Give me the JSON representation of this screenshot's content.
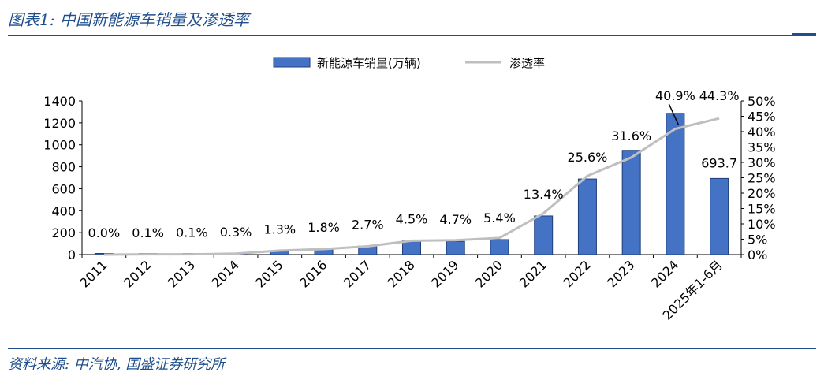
{
  "figure_title": "图表1:  中国新能源车销量及渗透率",
  "source": "资料来源:  中汽协, 国盛证券研究所",
  "colors": {
    "bar": "#4472c4",
    "bar_stroke": "#1f3f7a",
    "line": "#bfbfbf",
    "title": "#1f4e8c"
  },
  "chart_data": {
    "type": "bar",
    "categories": [
      "2011",
      "2012",
      "2013",
      "2014",
      "2015",
      "2016",
      "2017",
      "2018",
      "2019",
      "2020",
      "2021",
      "2022",
      "2023",
      "2024",
      "2025年1-6月"
    ],
    "series": [
      {
        "name": "新能源车销量(万辆)",
        "type": "bar",
        "values": [
          0.8,
          1.3,
          1.8,
          7.5,
          33.1,
          50.7,
          77.7,
          125.6,
          120.6,
          136.7,
          352.1,
          688.7,
          949.5,
          1286.6,
          693.7
        ],
        "data_labels": [
          "",
          "",
          "",
          "",
          "",
          "",
          "",
          "",
          "",
          "",
          "",
          "",
          "",
          "",
          "693.7"
        ]
      },
      {
        "name": "渗透率",
        "type": "line",
        "axis": "right",
        "values": [
          0.0,
          0.1,
          0.1,
          0.3,
          1.3,
          1.8,
          2.7,
          4.5,
          4.7,
          5.4,
          13.4,
          25.6,
          31.6,
          40.9,
          44.3
        ],
        "data_labels": [
          "0.0%",
          "0.1%",
          "0.1%",
          "0.3%",
          "1.3%",
          "1.8%",
          "2.7%",
          "4.5%",
          "4.7%",
          "5.4%",
          "13.4%",
          "25.6%",
          "31.6%",
          "40.9%",
          "44.3%"
        ]
      }
    ],
    "left_axis": {
      "min": 0,
      "max": 1400,
      "ticks": [
        "0",
        "200",
        "400",
        "600",
        "800",
        "1000",
        "1200",
        "1400"
      ]
    },
    "right_axis": {
      "min": 0,
      "max": 50,
      "ticks": [
        "0%",
        "5%",
        "10%",
        "15%",
        "20%",
        "25%",
        "30%",
        "35%",
        "40%",
        "45%",
        "50%"
      ]
    },
    "grid": false,
    "legend": "top-center"
  }
}
